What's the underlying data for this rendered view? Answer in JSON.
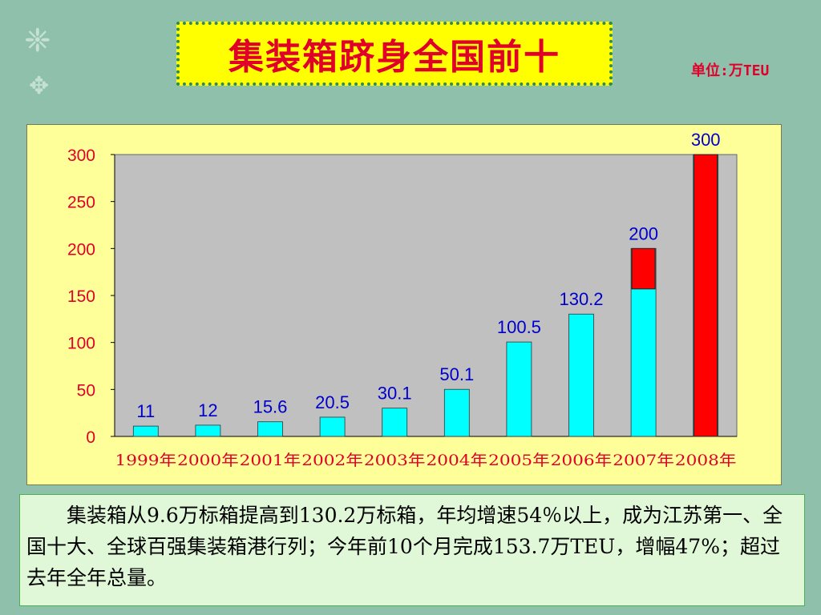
{
  "title": "集装箱跻身全国前十",
  "unit_label": "单位:万TEU",
  "colors": {
    "bar_fill": "#00ffff",
    "highlight_fill": "#ff0000",
    "value_label": "#0000cc",
    "axis_label": "#e0002a",
    "plot_bg": "#c0c0c0",
    "panel_bg": "#ffff99",
    "title_bg": "#ffff00"
  },
  "chart_data": {
    "type": "bar",
    "categories": [
      "1999年",
      "2000年",
      "2001年",
      "2002年",
      "2003年",
      "2004年",
      "2005年",
      "2006年",
      "2007年",
      "2008年"
    ],
    "values": [
      11,
      12,
      15.6,
      20.5,
      30.1,
      50.1,
      100.5,
      130.2,
      200,
      300
    ],
    "value_labels": [
      "11",
      "12",
      "15.6",
      "20.5",
      "30.1",
      "50.1",
      "100.5",
      "130.2",
      "200",
      "300"
    ],
    "highlight": [
      {
        "category": "2007年",
        "from": 157,
        "to": 200
      },
      {
        "category": "2008年",
        "from": 0,
        "to": 300
      }
    ],
    "yticks": [
      0,
      50,
      100,
      150,
      200,
      250,
      300
    ],
    "ylim": [
      0,
      300
    ],
    "grid": false,
    "title": "",
    "xlabel": "",
    "ylabel": ""
  },
  "description": "集装箱从9.6万标箱提高到130.2万标箱，年均增速54％以上，成为江苏第一、全国十大、全球百强集装箱港行列；今年前10个月完成153.7万TEU，增幅47%；超过去年全年总量。"
}
